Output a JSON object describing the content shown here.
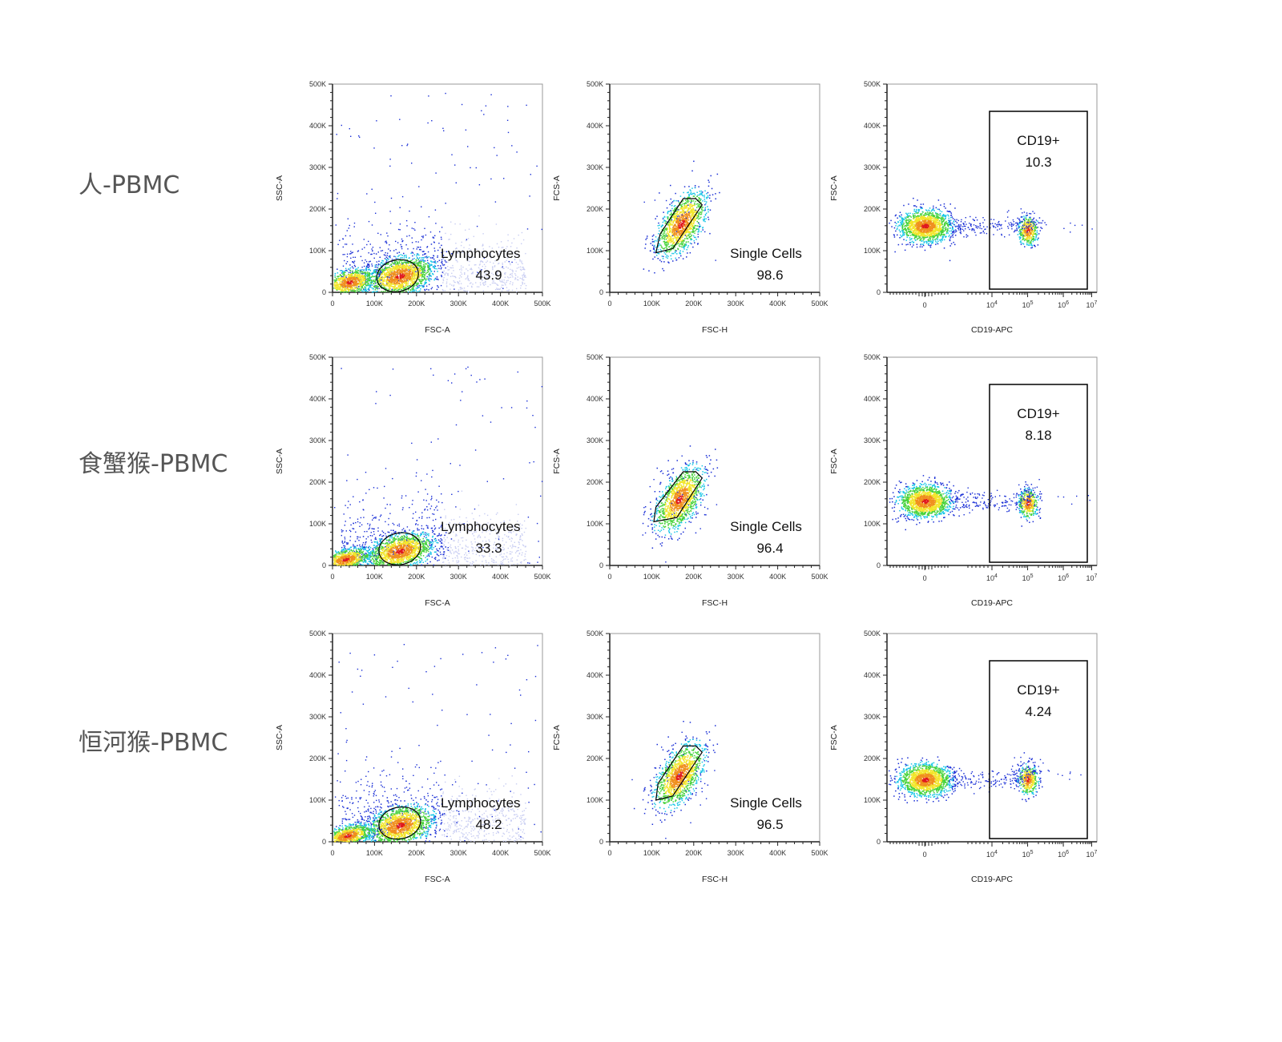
{
  "rows": [
    {
      "label": "人-PBMC"
    },
    {
      "label": "食蟹猴-PBMC"
    },
    {
      "label": "恒河猴-PBMC"
    }
  ],
  "colors": {
    "axis": "#222222",
    "label": "#555555",
    "gate": "#000000",
    "density": [
      "#c8cdf2",
      "#1a2fd6",
      "#17c6e6",
      "#46d23a",
      "#f2e52a",
      "#f0901e",
      "#e0181e"
    ]
  },
  "chart_data": [
    {
      "type": "scatter",
      "panel": "r1-p1",
      "xlabel": "FSC-A",
      "ylabel": "SSC-A",
      "xticks": [
        "0",
        "100K",
        "200K",
        "300K",
        "400K",
        "500K"
      ],
      "yticks": [
        "0",
        "100K",
        "200K",
        "300K",
        "400K",
        "500K"
      ],
      "xlim": [
        0,
        500000
      ],
      "ylim": [
        0,
        500000
      ],
      "gate": {
        "name": "Lymphocytes",
        "value": "43.9",
        "shape": "ellipse",
        "center": [
          155000,
          40000
        ],
        "radii": [
          50000,
          38000
        ]
      },
      "populations": [
        {
          "x": 160000,
          "y": 40000,
          "spread": [
            40000,
            22000
          ]
        },
        {
          "x": 40000,
          "y": 25000,
          "spread": [
            30000,
            15000
          ]
        }
      ]
    },
    {
      "type": "scatter",
      "panel": "r1-p2",
      "xlabel": "FSC-H",
      "ylabel": "FCS-A",
      "xticks": [
        "0",
        "100K",
        "200K",
        "300K",
        "400K",
        "500K"
      ],
      "yticks": [
        "0",
        "100K",
        "200K",
        "300K",
        "400K",
        "500K"
      ],
      "xlim": [
        0,
        500000
      ],
      "ylim": [
        0,
        500000
      ],
      "gate": {
        "name": "Single Cells",
        "value": "98.6",
        "shape": "polygon",
        "points": [
          [
            110000,
            95000
          ],
          [
            150000,
            105000
          ],
          [
            220000,
            210000
          ],
          [
            205000,
            225000
          ],
          [
            175000,
            225000
          ],
          [
            120000,
            140000
          ]
        ]
      },
      "populations": [
        {
          "x": 170000,
          "y": 165000,
          "spread": [
            30000,
            28000
          ]
        }
      ]
    },
    {
      "type": "scatter",
      "panel": "r1-p3",
      "xlabel": "CD19-APC",
      "ylabel": "FSC-A",
      "xticks": [
        "0",
        "10^4",
        "10^5",
        "10^6",
        "10^7"
      ],
      "yticks": [
        "0",
        "100K",
        "200K",
        "300K",
        "400K",
        "500K"
      ],
      "xscale": "biexponential",
      "ylim": [
        0,
        500000
      ],
      "gate": {
        "name": "CD19+",
        "value": "10.3",
        "shape": "rectangle"
      },
      "populations": [
        {
          "x": "0",
          "y": 160000,
          "weight": "major"
        },
        {
          "x": "10^5",
          "y": 150000,
          "weight": "minor"
        }
      ]
    },
    {
      "type": "scatter",
      "panel": "r2-p1",
      "xlabel": "FSC-A",
      "ylabel": "SSC-A",
      "xticks": [
        "0",
        "100K",
        "200K",
        "300K",
        "400K",
        "500K"
      ],
      "yticks": [
        "0",
        "100K",
        "200K",
        "300K",
        "400K",
        "500K"
      ],
      "xlim": [
        0,
        500000
      ],
      "ylim": [
        0,
        500000
      ],
      "gate": {
        "name": "Lymphocytes",
        "value": "33.3",
        "shape": "ellipse",
        "center": [
          160000,
          40000
        ],
        "radii": [
          50000,
          38000
        ]
      },
      "populations": [
        {
          "x": 160000,
          "y": 35000,
          "spread": [
            40000,
            20000
          ]
        },
        {
          "x": 30000,
          "y": 15000,
          "spread": [
            30000,
            12000
          ]
        }
      ]
    },
    {
      "type": "scatter",
      "panel": "r2-p2",
      "xlabel": "FSC-H",
      "ylabel": "FCS-A",
      "xticks": [
        "0",
        "100K",
        "200K",
        "300K",
        "400K",
        "500K"
      ],
      "yticks": [
        "0",
        "100K",
        "200K",
        "300K",
        "400K",
        "500K"
      ],
      "xlim": [
        0,
        500000
      ],
      "ylim": [
        0,
        500000
      ],
      "gate": {
        "name": "Single Cells",
        "value": "96.4",
        "shape": "polygon",
        "points": [
          [
            105000,
            105000
          ],
          [
            160000,
            115000
          ],
          [
            220000,
            210000
          ],
          [
            205000,
            225000
          ],
          [
            175000,
            225000
          ],
          [
            110000,
            140000
          ]
        ]
      },
      "populations": [
        {
          "x": 165000,
          "y": 160000,
          "spread": [
            30000,
            28000
          ]
        }
      ]
    },
    {
      "type": "scatter",
      "panel": "r2-p3",
      "xlabel": "CD19-APC",
      "ylabel": "FSC-A",
      "xticks": [
        "0",
        "10^4",
        "10^5",
        "10^6",
        "10^7"
      ],
      "yticks": [
        "0",
        "100K",
        "200K",
        "300K",
        "400K",
        "500K"
      ],
      "xscale": "biexponential",
      "ylim": [
        0,
        500000
      ],
      "gate": {
        "name": "CD19+",
        "value": "8.18",
        "shape": "rectangle"
      },
      "populations": [
        {
          "x": "0",
          "y": 155000,
          "weight": "major"
        },
        {
          "x": "10^5",
          "y": 150000,
          "weight": "minor"
        }
      ]
    },
    {
      "type": "scatter",
      "panel": "r3-p1",
      "xlabel": "FSC-A",
      "ylabel": "SSC-A",
      "xticks": [
        "0",
        "100K",
        "200K",
        "300K",
        "400K",
        "500K"
      ],
      "yticks": [
        "0",
        "100K",
        "200K",
        "300K",
        "400K",
        "500K"
      ],
      "xlim": [
        0,
        500000
      ],
      "ylim": [
        0,
        500000
      ],
      "gate": {
        "name": "Lymphocytes",
        "value": "48.2",
        "shape": "ellipse",
        "center": [
          160000,
          45000
        ],
        "radii": [
          50000,
          38000
        ]
      },
      "populations": [
        {
          "x": 160000,
          "y": 40000,
          "spread": [
            40000,
            22000
          ]
        },
        {
          "x": 35000,
          "y": 15000,
          "spread": [
            30000,
            12000
          ]
        }
      ]
    },
    {
      "type": "scatter",
      "panel": "r3-p2",
      "xlabel": "FSC-H",
      "ylabel": "FCS-A",
      "xticks": [
        "0",
        "100K",
        "200K",
        "300K",
        "400K",
        "500K"
      ],
      "yticks": [
        "0",
        "100K",
        "200K",
        "300K",
        "400K",
        "500K"
      ],
      "xlim": [
        0,
        500000
      ],
      "ylim": [
        0,
        500000
      ],
      "gate": {
        "name": "Single Cells",
        "value": "96.5",
        "shape": "polygon",
        "points": [
          [
            110000,
            100000
          ],
          [
            150000,
            110000
          ],
          [
            220000,
            215000
          ],
          [
            205000,
            230000
          ],
          [
            175000,
            230000
          ],
          [
            115000,
            140000
          ]
        ]
      },
      "populations": [
        {
          "x": 165000,
          "y": 160000,
          "spread": [
            30000,
            28000
          ]
        }
      ]
    },
    {
      "type": "scatter",
      "panel": "r3-p3",
      "xlabel": "CD19-APC",
      "ylabel": "FSC-A",
      "xticks": [
        "0",
        "10^4",
        "10^5",
        "10^6",
        "10^7"
      ],
      "yticks": [
        "0",
        "100K",
        "200K",
        "300K",
        "400K",
        "500K"
      ],
      "xscale": "biexponential",
      "ylim": [
        0,
        500000
      ],
      "gate": {
        "name": "CD19+",
        "value": "4.24",
        "shape": "rectangle"
      },
      "populations": [
        {
          "x": "0",
          "y": 150000,
          "weight": "major"
        },
        {
          "x": "10^5",
          "y": 150000,
          "weight": "minor"
        }
      ]
    }
  ]
}
